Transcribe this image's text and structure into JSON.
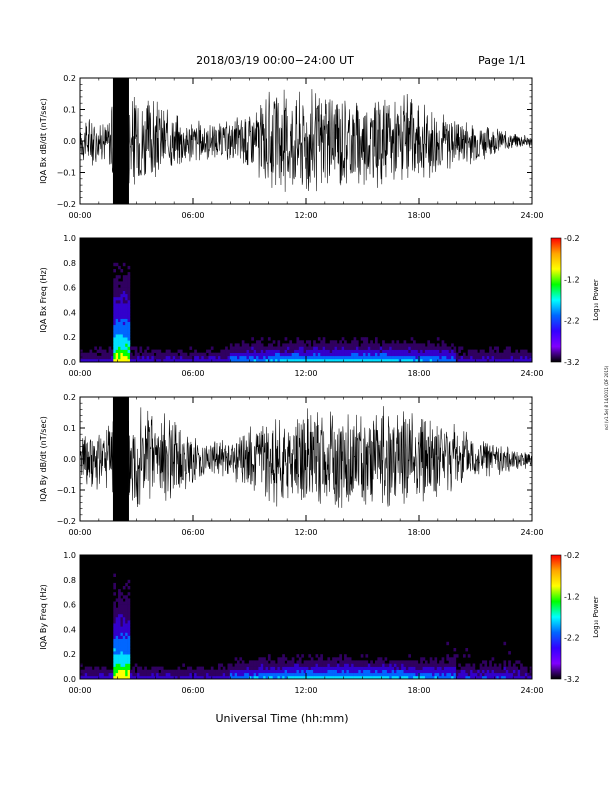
{
  "header": {
    "date_range": "2018/03/19   00:00−24:00 UT",
    "page": "Page 1/1"
  },
  "footer": {
    "x_axis_title": "Universal Time (hh:mm)"
  },
  "side_note": "ncl (v1.5e) 8 14/2011 (DF 2015)",
  "colorbar": {
    "label": "Log₁₀ Power",
    "ticks": [
      "-0.2",
      "-1.2",
      "-2.2",
      "-3.2"
    ],
    "colors": [
      "#ff0000",
      "#ffa500",
      "#ffff00",
      "#00ff00",
      "#00ffff",
      "#0066ff",
      "#3300ff",
      "#8000ff",
      "#000000"
    ]
  },
  "chart_data": [
    {
      "type": "line",
      "ylabel": "IQA Bx dB/dt (nT/sec)",
      "xticks": [
        "00:00",
        "06:00",
        "12:00",
        "18:00",
        "24:00"
      ],
      "xlim": [
        0,
        24
      ],
      "ylim": [
        -0.2,
        0.2
      ],
      "yticks": [
        "0.2",
        "0.1",
        "0.0",
        "−0.1",
        "−0.2"
      ],
      "series": [
        {
          "x": [
            0,
            0.5,
            1.0,
            1.5,
            1.8,
            2.0,
            2.5,
            3.0,
            4.0,
            5.0,
            6.0,
            7.0,
            8.0,
            9.0,
            10.0,
            11.0,
            12.0,
            13.0,
            14.0,
            15.0,
            16.0,
            17.0,
            18.0,
            19.0,
            20.0,
            21.0,
            22.0,
            23.0,
            24.0
          ],
          "y": [
            0.05,
            0.1,
            0.06,
            0.08,
            0.2,
            0.2,
            0.2,
            0.18,
            0.14,
            0.1,
            0.08,
            0.06,
            0.07,
            0.12,
            0.16,
            0.18,
            0.19,
            0.18,
            0.17,
            0.16,
            0.15,
            0.16,
            0.14,
            0.12,
            0.09,
            0.07,
            0.05,
            0.03,
            0.02
          ]
        }
      ]
    },
    {
      "type": "heatmap",
      "ylabel": "IQA Bx Freq (Hz)",
      "xticks": [
        "00:00",
        "06:00",
        "12:00",
        "18:00",
        "24:00"
      ],
      "xlim": [
        0,
        24
      ],
      "ylim": [
        0.0,
        1.0
      ],
      "yticks": [
        "1.0",
        "0.8",
        "0.6",
        "0.4",
        "0.2",
        "0.0"
      ],
      "zlim": [
        -3.2,
        -0.2
      ]
    },
    {
      "type": "line",
      "ylabel": "IQA By dB/dt (nT/sec)",
      "xticks": [
        "00:00",
        "06:00",
        "12:00",
        "18:00",
        "24:00"
      ],
      "xlim": [
        0,
        24
      ],
      "ylim": [
        -0.2,
        0.2
      ],
      "yticks": [
        "0.2",
        "0.1",
        "0.0",
        "−0.1",
        "−0.2"
      ],
      "series": [
        {
          "x": [
            0,
            0.5,
            1.0,
            1.5,
            1.8,
            2.0,
            2.5,
            3.0,
            4.0,
            5.0,
            6.0,
            7.0,
            8.0,
            9.0,
            10.0,
            11.0,
            12.0,
            13.0,
            14.0,
            15.0,
            16.0,
            17.0,
            18.0,
            19.0,
            20.0,
            21.0,
            22.0,
            23.0,
            24.0
          ],
          "y": [
            0.08,
            0.12,
            0.1,
            0.15,
            0.2,
            0.2,
            0.2,
            0.2,
            0.18,
            0.14,
            0.1,
            0.06,
            0.07,
            0.12,
            0.15,
            0.17,
            0.19,
            0.18,
            0.17,
            0.18,
            0.17,
            0.18,
            0.16,
            0.15,
            0.12,
            0.08,
            0.06,
            0.04,
            0.03
          ]
        }
      ]
    },
    {
      "type": "heatmap",
      "ylabel": "IQA By Freq (Hz)",
      "xticks": [
        "00:00",
        "06:00",
        "12:00",
        "18:00",
        "24:00"
      ],
      "xlim": [
        0,
        24
      ],
      "ylim": [
        0.0,
        1.0
      ],
      "yticks": [
        "1.0",
        "0.8",
        "0.6",
        "0.4",
        "0.2",
        "0.0"
      ],
      "zlim": [
        -3.2,
        -0.2
      ]
    }
  ]
}
